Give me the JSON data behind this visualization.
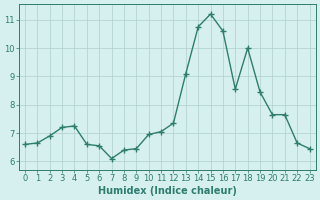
{
  "x": [
    0,
    1,
    2,
    3,
    4,
    5,
    6,
    7,
    8,
    9,
    10,
    11,
    12,
    13,
    14,
    15,
    16,
    17,
    18,
    19,
    20,
    21,
    22,
    23
  ],
  "y": [
    6.6,
    6.65,
    6.9,
    7.2,
    7.25,
    6.6,
    6.55,
    6.1,
    6.4,
    6.45,
    6.95,
    7.05,
    7.35,
    9.1,
    10.75,
    11.2,
    10.6,
    8.55,
    10.0,
    8.45,
    7.65,
    7.65,
    6.65,
    6.45
  ],
  "line_color": "#2e7d6e",
  "marker": "+",
  "marker_size": 4,
  "linewidth": 1.0,
  "bg_color": "#d6f0ef",
  "grid_color": "#b0cece",
  "xlabel": "Humidex (Indice chaleur)",
  "xlabel_fontsize": 7,
  "tick_fontsize": 6,
  "ylim": [
    5.7,
    11.55
  ],
  "xlim": [
    -0.5,
    23.5
  ],
  "yticks": [
    6,
    7,
    8,
    9,
    10,
    11
  ],
  "xticks": [
    0,
    1,
    2,
    3,
    4,
    5,
    6,
    7,
    8,
    9,
    10,
    11,
    12,
    13,
    14,
    15,
    16,
    17,
    18,
    19,
    20,
    21,
    22,
    23
  ]
}
